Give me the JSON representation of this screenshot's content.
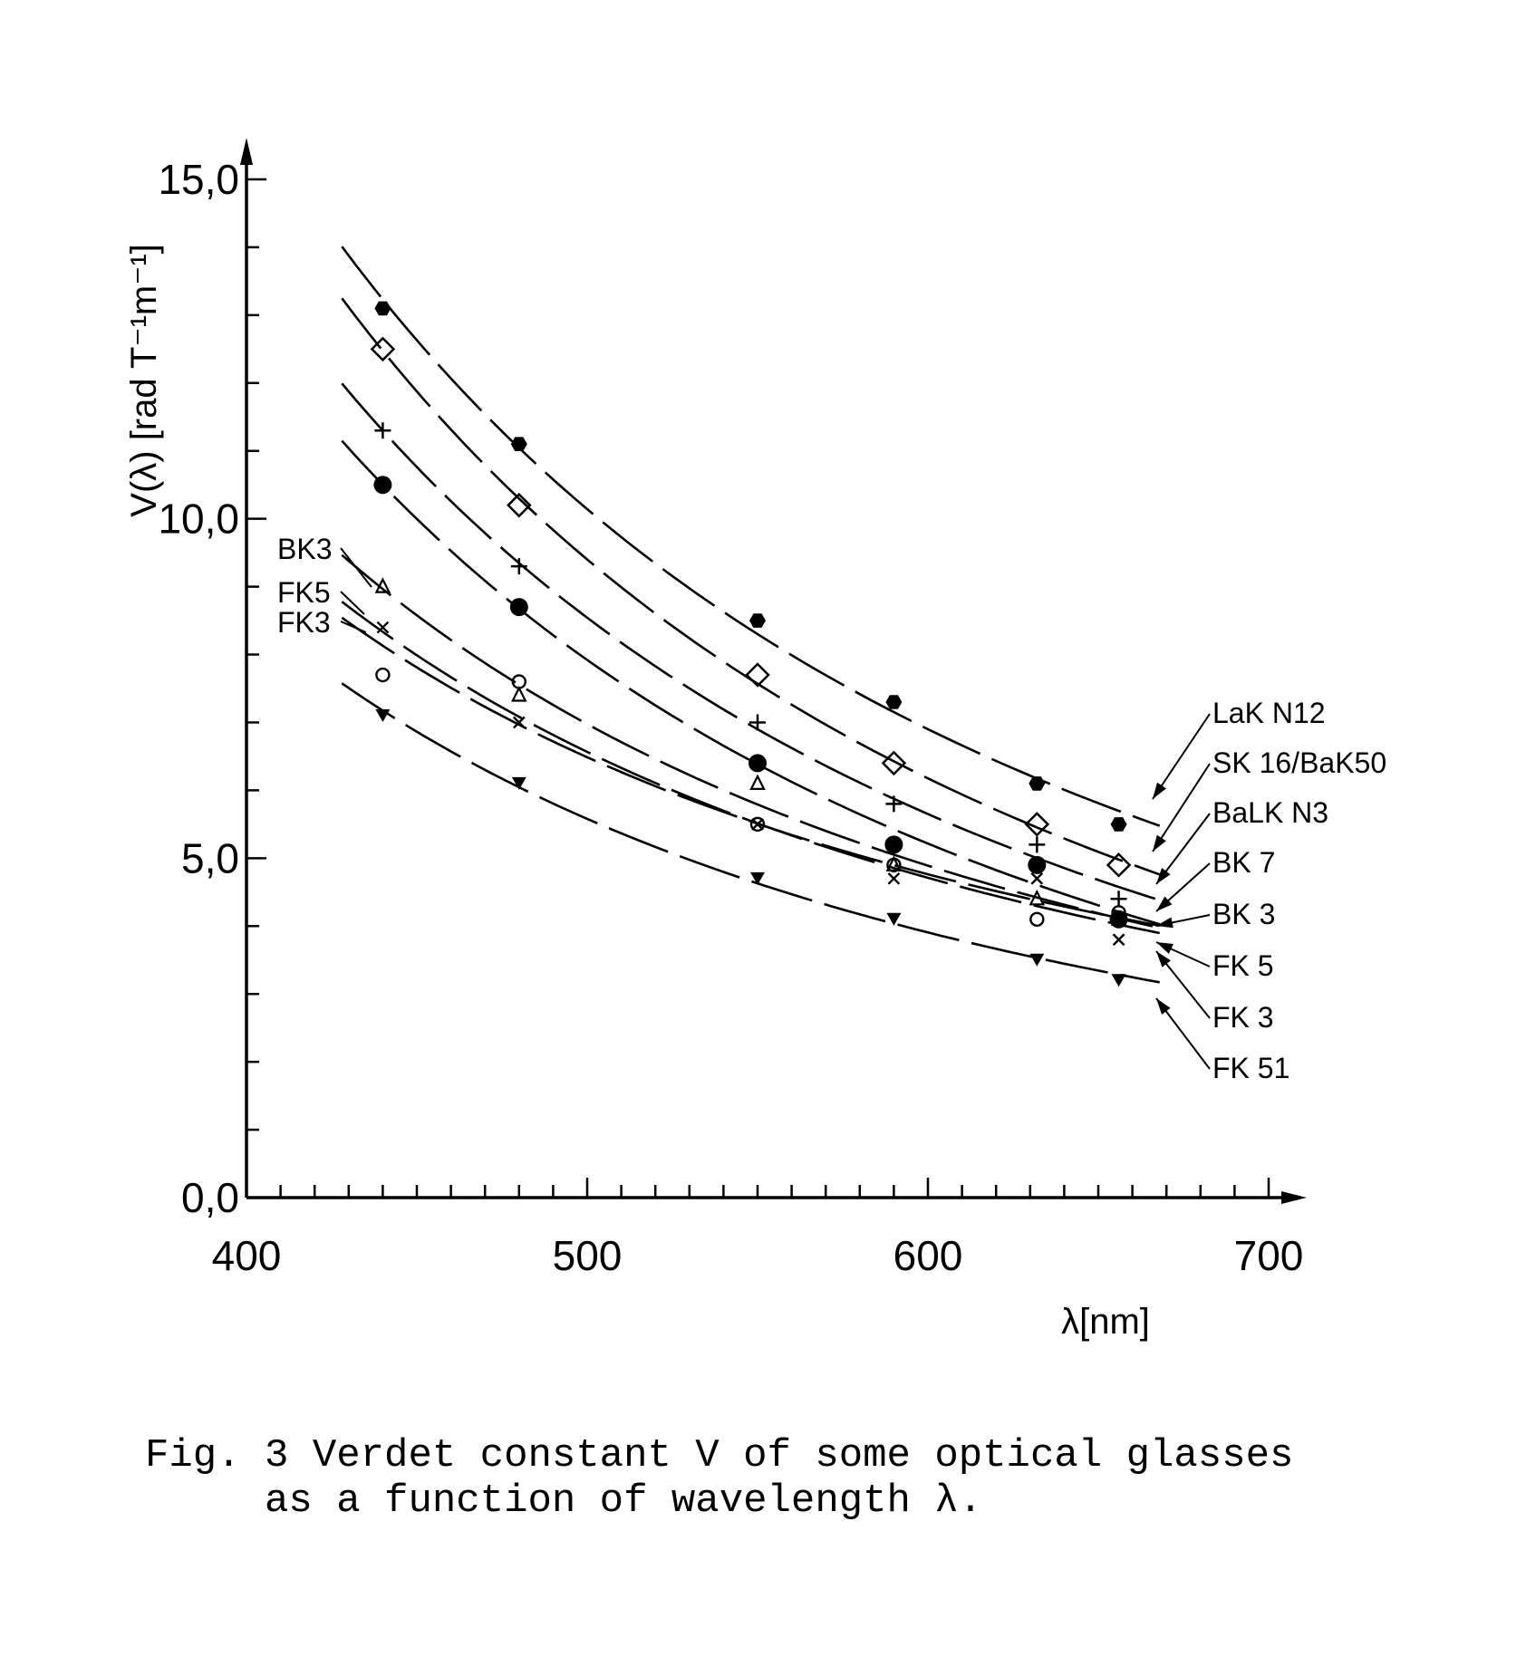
{
  "chart_data": {
    "type": "line",
    "xlabel": "λ[nm]",
    "ylabel": "V(λ) [rad T⁻¹m⁻¹]",
    "xlim": [
      400,
      700
    ],
    "ylim": [
      0,
      15
    ],
    "xticks": [
      400,
      500,
      600,
      700
    ],
    "xtick_labels": [
      "400",
      "500",
      "600",
      "700"
    ],
    "yticks": [
      0,
      5,
      10,
      15
    ],
    "ytick_labels": [
      "0,0",
      "5,0",
      "10,0",
      "15,0"
    ],
    "x": [
      440,
      480,
      550,
      590,
      632,
      656
    ],
    "series": [
      {
        "name": "LaK N12",
        "marker": "filled-hexagon",
        "values": [
          13.1,
          11.1,
          8.5,
          7.3,
          6.1,
          5.5
        ]
      },
      {
        "name": "SK 16/BaK50",
        "marker": "open-diamond",
        "values": [
          12.5,
          10.2,
          7.7,
          6.4,
          5.5,
          4.9
        ]
      },
      {
        "name": "BaLK N3",
        "marker": "plus",
        "values": [
          11.3,
          9.3,
          7.0,
          5.8,
          5.2,
          4.4
        ]
      },
      {
        "name": "BK 7",
        "marker": "filled-circle",
        "values": [
          10.5,
          8.7,
          6.4,
          5.2,
          4.9,
          4.1
        ]
      },
      {
        "name": "BK 3",
        "marker": "open-triangle",
        "values": [
          9.0,
          7.4,
          6.1,
          4.9,
          4.4,
          4.1
        ]
      },
      {
        "name": "FK 5",
        "marker": "open-circle",
        "values": [
          7.7,
          7.6,
          5.5,
          4.9,
          4.1,
          4.2
        ]
      },
      {
        "name": "FK 3",
        "marker": "cross",
        "values": [
          8.4,
          7.0,
          5.5,
          4.7,
          4.7,
          3.8
        ]
      },
      {
        "name": "FK 51",
        "marker": "filled-triangle-down",
        "values": [
          7.1,
          6.1,
          4.7,
          4.1,
          3.5,
          3.2
        ]
      }
    ],
    "left_labels": [
      "BK3",
      "FK5",
      "FK3"
    ],
    "grid": false
  },
  "caption": {
    "line1": "Fig. 3 Verdet constant V of some optical glasses",
    "line2": "     as a function of wavelength λ."
  }
}
